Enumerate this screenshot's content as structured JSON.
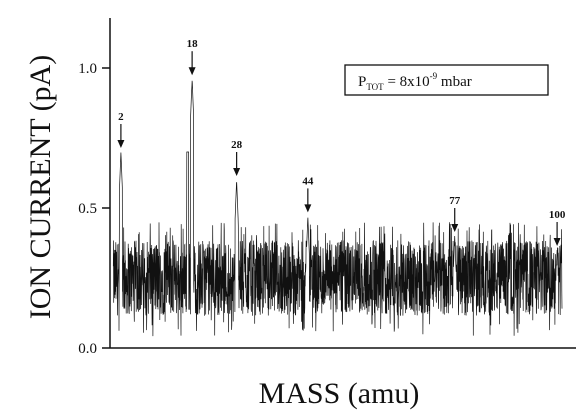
{
  "chart_data": {
    "type": "line",
    "title": "",
    "xlabel": "MASS (amu)",
    "ylabel": "ION CURRENT (pA)",
    "xlim": [
      0,
      102
    ],
    "ylim": [
      0,
      1.1
    ],
    "yticks": [
      {
        "value": 0.0,
        "label": "0.0"
      },
      {
        "value": 0.5,
        "label": "0.5"
      },
      {
        "value": 1.0,
        "label": "1.0"
      }
    ],
    "baseline": {
      "mean": 0.25,
      "noise_range": [
        0.1,
        0.4
      ]
    },
    "peaks": [
      {
        "label": "2",
        "mass": 2,
        "value": 0.7
      },
      {
        "label": "18",
        "mass": 18,
        "value": 0.96
      },
      {
        "label": "28",
        "mass": 28,
        "value": 0.6
      },
      {
        "label": "44",
        "mass": 44,
        "value": 0.47
      },
      {
        "label": "77",
        "mass": 77,
        "value": 0.4
      },
      {
        "label": "100",
        "mass": 100,
        "value": 0.35
      }
    ],
    "annotation": {
      "prefix": "P",
      "subscript": "TOT",
      "value_text": " = 8x10",
      "exponent": "-9",
      "unit_text": " mbar"
    },
    "grid": false,
    "legend": "top-right"
  }
}
